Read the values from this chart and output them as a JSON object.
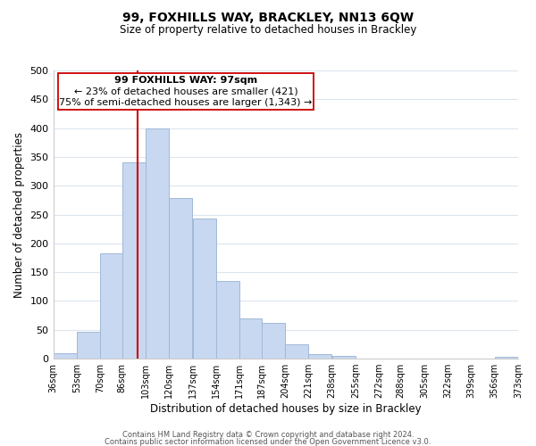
{
  "title": "99, FOXHILLS WAY, BRACKLEY, NN13 6QW",
  "subtitle": "Size of property relative to detached houses in Brackley",
  "xlabel": "Distribution of detached houses by size in Brackley",
  "ylabel": "Number of detached properties",
  "bar_color": "#c8d8f0",
  "bar_edge_color": "#a0b8d8",
  "highlight_line_color": "#cc0000",
  "highlight_x": 97,
  "bin_edges": [
    36,
    53,
    70,
    86,
    103,
    120,
    137,
    154,
    171,
    187,
    204,
    221,
    238,
    255,
    272,
    288,
    305,
    322,
    339,
    356,
    373
  ],
  "bar_heights": [
    10,
    46,
    183,
    340,
    400,
    278,
    243,
    135,
    70,
    62,
    25,
    8,
    5,
    0,
    0,
    0,
    0,
    0,
    0,
    3
  ],
  "xlim": [
    36,
    373
  ],
  "ylim": [
    0,
    500
  ],
  "yticks": [
    0,
    50,
    100,
    150,
    200,
    250,
    300,
    350,
    400,
    450,
    500
  ],
  "annotation_box_text_line1": "99 FOXHILLS WAY: 97sqm",
  "annotation_box_text_line2": "← 23% of detached houses are smaller (421)",
  "annotation_box_text_line3": "75% of semi-detached houses are larger (1,343) →",
  "footer_line1": "Contains HM Land Registry data © Crown copyright and database right 2024.",
  "footer_line2": "Contains public sector information licensed under the Open Government Licence v3.0.",
  "background_color": "#ffffff",
  "grid_color": "#dce6f0",
  "tick_labels": [
    "36sqm",
    "53sqm",
    "70sqm",
    "86sqm",
    "103sqm",
    "120sqm",
    "137sqm",
    "154sqm",
    "171sqm",
    "187sqm",
    "204sqm",
    "221sqm",
    "238sqm",
    "255sqm",
    "272sqm",
    "288sqm",
    "305sqm",
    "322sqm",
    "339sqm",
    "356sqm",
    "373sqm"
  ]
}
